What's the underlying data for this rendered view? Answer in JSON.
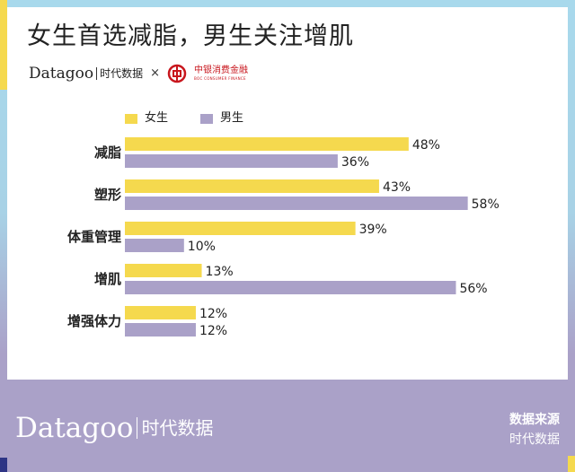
{
  "title": "女生首选减脂，男生关注增肌",
  "brand": {
    "name": "Datagoo",
    "cn": "时代数据",
    "times": "×",
    "partner": "中银消费金融",
    "partner_en": "BOC CONSUMER FINANCE"
  },
  "colors": {
    "female": "#f5d94e",
    "male": "#aaa1c8"
  },
  "chart_data": {
    "type": "bar",
    "orientation": "horizontal",
    "categories": [
      "减脂",
      "塑形",
      "体重管理",
      "增肌",
      "增强体力"
    ],
    "series": [
      {
        "name": "女生",
        "values": [
          48,
          43,
          39,
          13,
          12
        ],
        "labels": [
          "48%",
          "43%",
          "39%",
          "13%",
          "12%"
        ]
      },
      {
        "name": "男生",
        "values": [
          36,
          58,
          10,
          56,
          12
        ],
        "labels": [
          "36%",
          "58%",
          "10%",
          "56%",
          "12%"
        ]
      }
    ],
    "unit": "%",
    "legend": "top",
    "grid": false
  },
  "footer": {
    "brand": "Datagoo",
    "cn": "时代数据",
    "source_title": "数据来源",
    "source_value": "时代数据"
  }
}
